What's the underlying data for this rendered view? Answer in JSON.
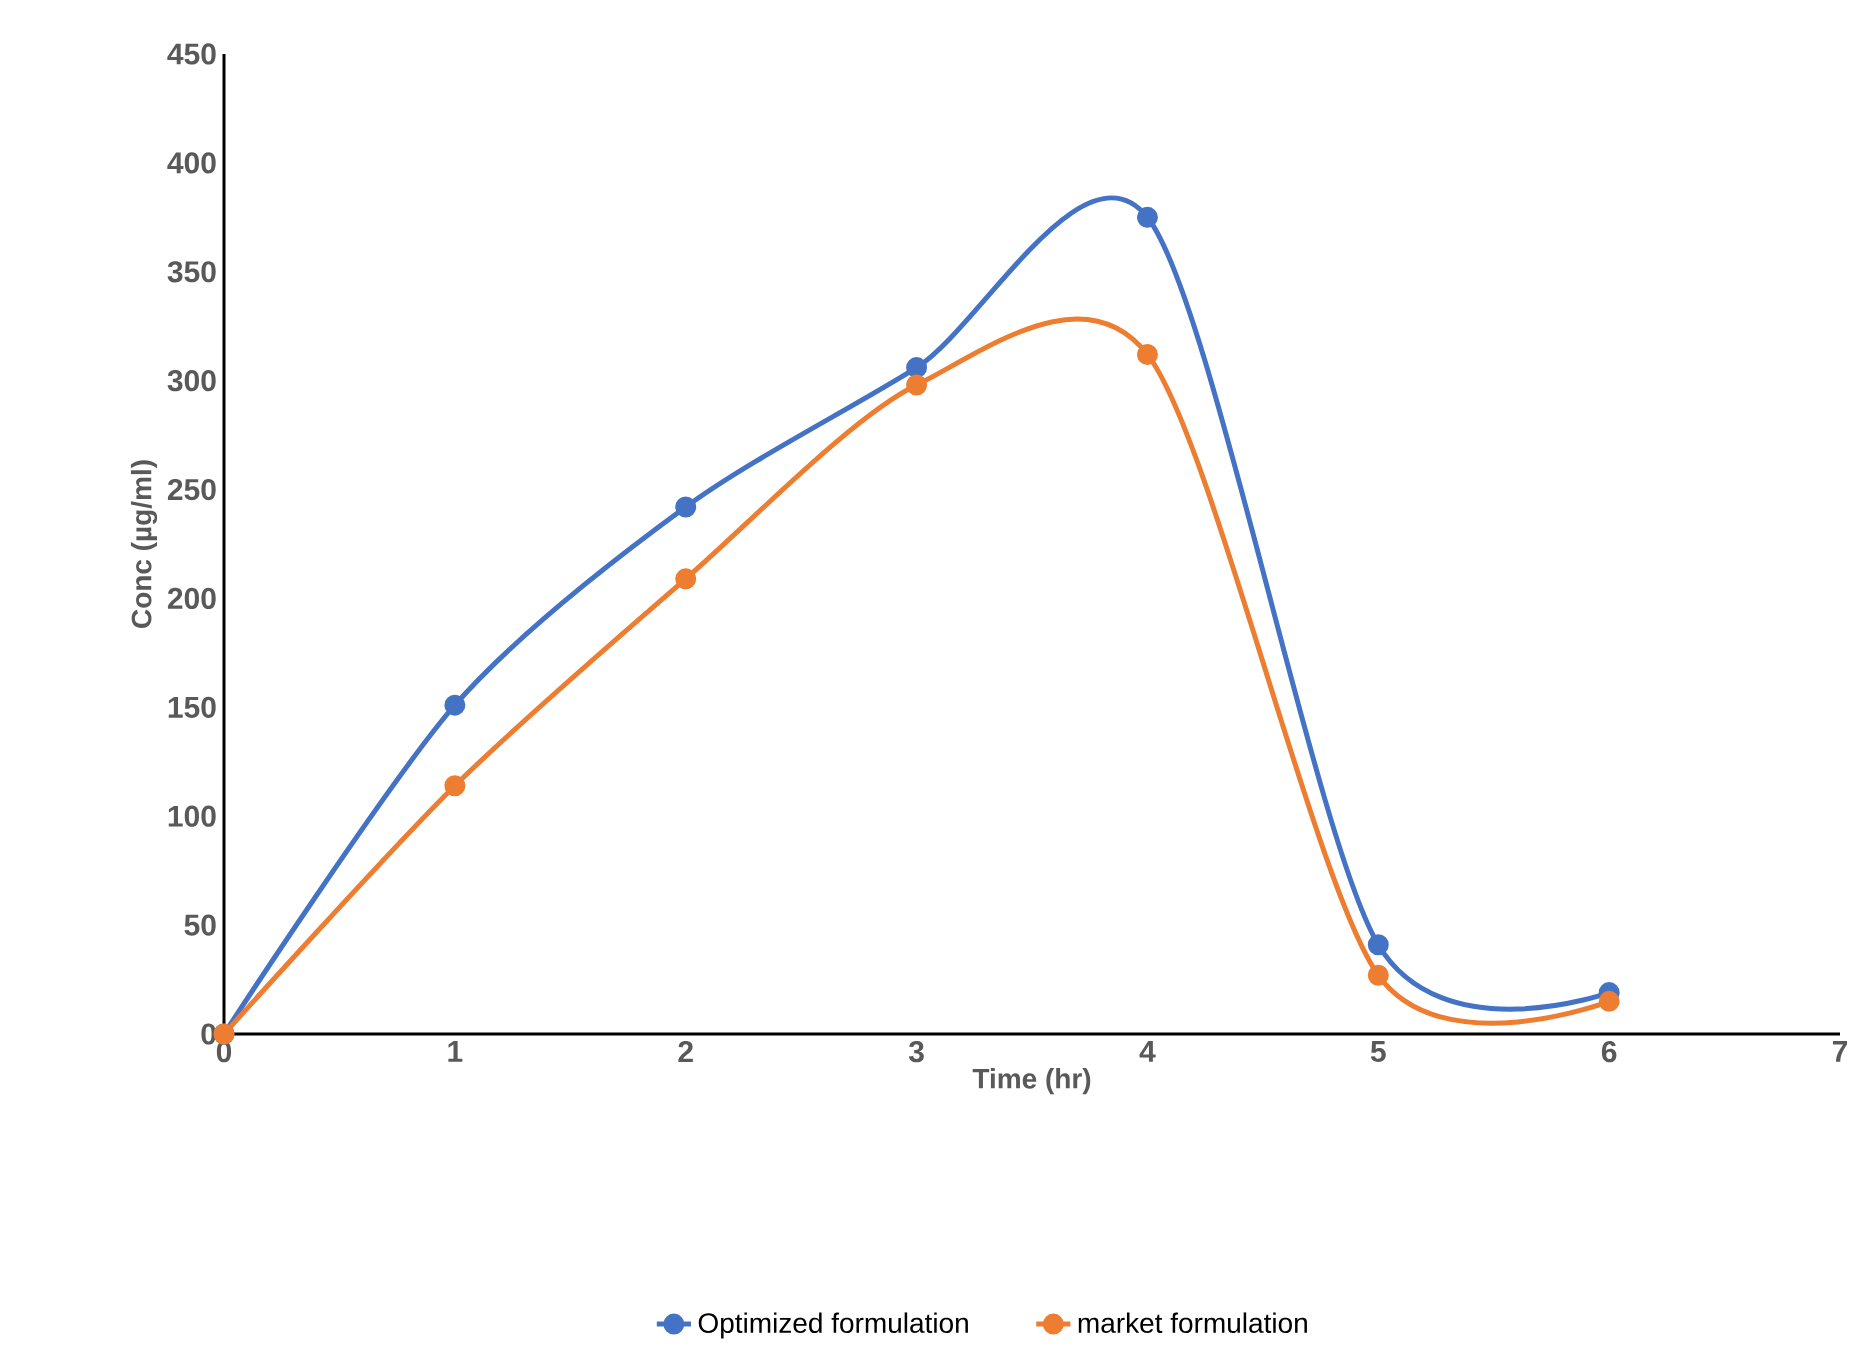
{
  "chart_data": {
    "type": "line",
    "xlabel": "Time (hr)",
    "ylabel": "Conc (µg/ml)",
    "x": [
      0,
      1,
      2,
      3,
      4,
      5,
      6
    ],
    "series": [
      {
        "name": "Optimized formulation",
        "color": "#4472c4",
        "values": [
          0,
          151,
          242,
          306,
          375,
          41,
          19
        ]
      },
      {
        "name": "market formulation",
        "color": "#ed7d31",
        "values": [
          0,
          114,
          209,
          298,
          312,
          27,
          15
        ]
      }
    ],
    "xlim": [
      0,
      7
    ],
    "xticks": [
      0,
      1,
      2,
      3,
      4,
      5,
      6,
      7
    ],
    "ylim": [
      0,
      450
    ],
    "yticks": [
      0,
      50,
      100,
      150,
      200,
      250,
      300,
      350,
      400,
      450
    ],
    "grid": false,
    "legend": "bottom",
    "marker": "circle",
    "line_style": "solid"
  }
}
